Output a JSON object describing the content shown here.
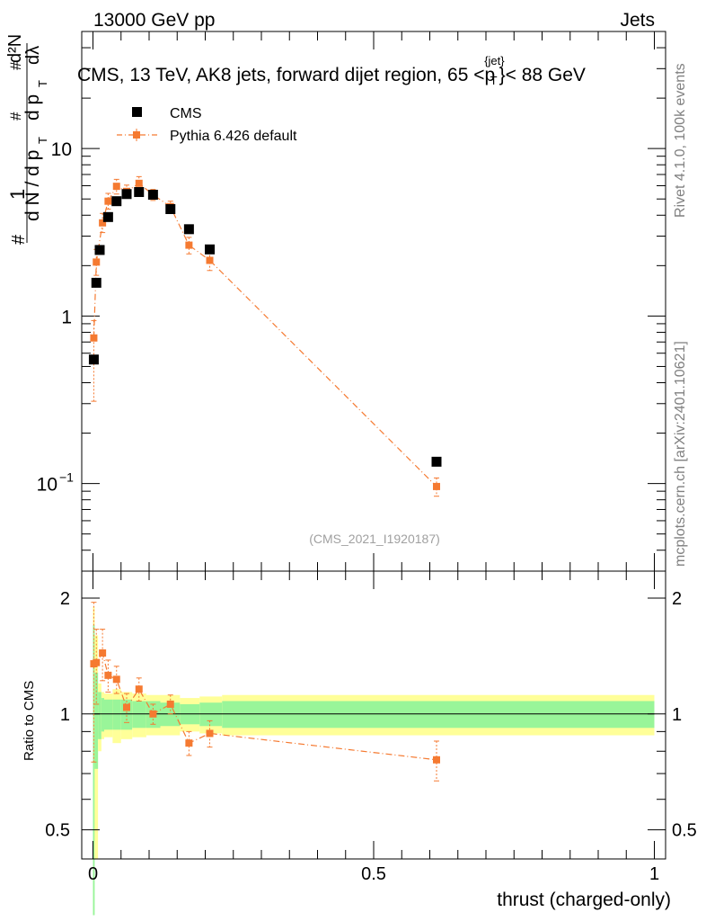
{
  "header": {
    "energy_label": "13000 GeV pp",
    "category_label": "Jets",
    "plot_title": "CMS, 13 TeV, AK8 jets, forward dijet region, 65 <p",
    "title_sup": "{jet}",
    "title_sub": "T",
    "title_tail": "}< 88 GeV"
  },
  "side": {
    "rivet_label": "Rivet 4.1.0,  100k events",
    "mcplots_label": "mcplots.cern.ch [arXiv:2401.10621]"
  },
  "ylabel_main": {
    "hash1": "#",
    "one": "1",
    "dn_left": "d N / d p",
    "t_sub_left": "T",
    "hash2": "#",
    "dp_right": "d p",
    "t_sub_right": "T",
    "hash3": "#",
    "d2n_top": "d²N",
    "dlambda": "dλ"
  },
  "legend": {
    "cms_label": "CMS",
    "mc_label": "Pythia 6.426 default"
  },
  "analysis_id": "(CMS_2021_I1920187)",
  "colors": {
    "data": "#000000",
    "mc": "#f57a31",
    "band_inner": "#99f599",
    "band_outer": "#ffff99"
  },
  "chart_data": {
    "type": "scatter",
    "title": "CMS, 13 TeV, AK8 jets, forward dijet region, 65 < pT{jet} < 88 GeV",
    "xlabel": "thrust (charged-only)",
    "xlim": [
      -0.02,
      1.02
    ],
    "main": {
      "ylabel": "1/(dN/dpT) d²N/(dpT dλ)",
      "yscale": "log",
      "ylim": [
        0.03,
        50
      ],
      "yticks": [
        {
          "value": 10,
          "label": "10",
          "exp": ""
        },
        {
          "value": 1,
          "label": "1",
          "exp": ""
        },
        {
          "value": 0.1,
          "label": "10",
          "exp": "−1"
        }
      ],
      "series": [
        {
          "name": "CMS",
          "x": [
            0.0015,
            0.006,
            0.012,
            0.027,
            0.042,
            0.06,
            0.082,
            0.107,
            0.138,
            0.171,
            0.208,
            0.612
          ],
          "y": [
            0.55,
            1.58,
            2.48,
            3.9,
            4.85,
            5.35,
            5.5,
            5.3,
            4.35,
            3.3,
            2.5,
            0.135
          ]
        },
        {
          "name": "Pythia 6.426 default",
          "x": [
            0.0015,
            0.006,
            0.017,
            0.027,
            0.042,
            0.06,
            0.082,
            0.107,
            0.138,
            0.171,
            0.208,
            0.612
          ],
          "y": [
            0.74,
            2.1,
            3.6,
            4.85,
            5.95,
            5.55,
            6.2,
            5.3,
            4.5,
            2.65,
            2.15,
            0.096
          ],
          "yerr_lo": [
            0.43,
            0.35,
            0.45,
            0.5,
            0.6,
            0.5,
            0.6,
            0.4,
            0.35,
            0.3,
            0.28,
            0.012
          ],
          "yerr_hi": [
            0.2,
            0.4,
            0.5,
            0.55,
            0.6,
            0.5,
            0.6,
            0.4,
            0.35,
            0.3,
            0.28,
            0.012
          ]
        }
      ]
    },
    "ratio": {
      "ylabel": "Ratio to CMS",
      "yscale": "log",
      "ylim": [
        0.42,
        2.35
      ],
      "yticks": [
        {
          "value": 2,
          "label": "2"
        },
        {
          "value": 1,
          "label": "1"
        },
        {
          "value": 0.5,
          "label": "0.5"
        }
      ],
      "xticks": [
        {
          "value": 0,
          "label": "0"
        },
        {
          "value": 0.5,
          "label": "0.5"
        },
        {
          "value": 1,
          "label": "1"
        }
      ],
      "mc_x": [
        0.0015,
        0.006,
        0.017,
        0.027,
        0.042,
        0.06,
        0.082,
        0.107,
        0.138,
        0.171,
        0.208,
        0.612
      ],
      "mc_ratio": [
        1.35,
        1.36,
        1.44,
        1.26,
        1.23,
        1.04,
        1.16,
        1.0,
        1.06,
        0.84,
        0.89,
        0.76
      ],
      "mc_err": [
        0.6,
        0.3,
        0.22,
        0.12,
        0.1,
        0.09,
        0.08,
        0.06,
        0.06,
        0.06,
        0.07,
        0.09
      ],
      "band_edges": [
        0.0,
        0.003,
        0.009,
        0.015,
        0.02,
        0.035,
        0.05,
        0.07,
        0.095,
        0.12,
        0.155,
        0.19,
        0.23,
        1.0
      ],
      "band_inner": [
        0.7,
        0.28,
        0.14,
        0.1,
        0.09,
        0.09,
        0.09,
        0.08,
        0.08,
        0.07,
        0.06,
        0.07,
        0.08
      ],
      "band_outer": [
        0.9,
        0.6,
        0.2,
        0.14,
        0.13,
        0.16,
        0.14,
        0.13,
        0.12,
        0.12,
        0.1,
        0.11,
        0.12
      ]
    }
  }
}
